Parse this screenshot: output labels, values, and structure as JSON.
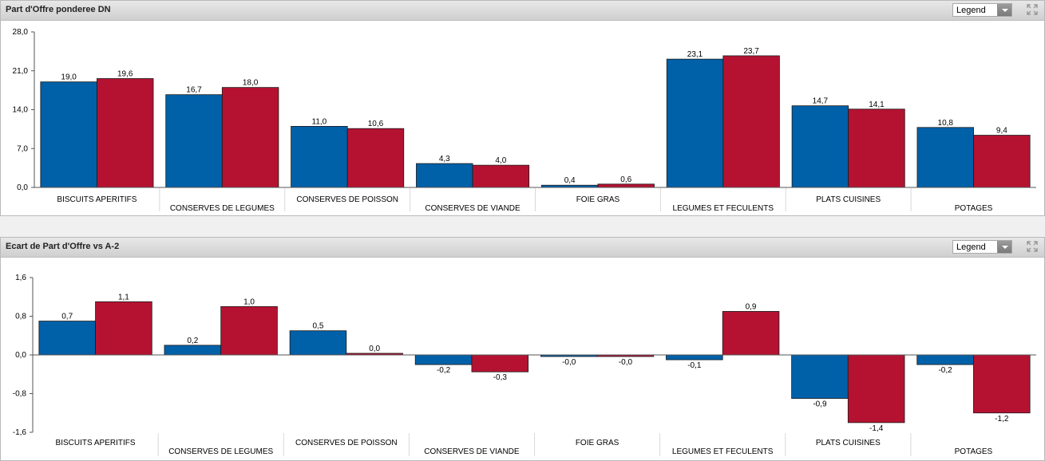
{
  "panels": [
    {
      "title": "Part d'Offre ponderee DN",
      "legend_label": "Legend"
    },
    {
      "title": "Ecart de Part d'Offre vs A-2",
      "legend_label": "Legend"
    }
  ],
  "colors": {
    "series_a": "#0060a8",
    "series_b": "#b51232",
    "axis": "#555555",
    "separator": "#d8d8d8"
  },
  "icons": {
    "expand": "expand-arrows-icon",
    "dropdown": "chevron-down-icon"
  },
  "chart_data": [
    {
      "type": "bar",
      "title": "Part d'Offre ponderee DN",
      "categories": [
        "BISCUITS APERITIFS",
        "CONSERVES DE LEGUMES",
        "CONSERVES DE POISSON",
        "CONSERVES DE VIANDE",
        "FOIE GRAS",
        "LEGUMES ET FECULENTS",
        "PLATS CUISINES",
        "POTAGES"
      ],
      "series": [
        {
          "values": [
            19.0,
            16.7,
            11.0,
            4.3,
            0.4,
            23.1,
            14.7,
            10.8
          ],
          "labels": [
            "19,0",
            "16,7",
            "11,0",
            "4,3",
            "0,4",
            "23,1",
            "14,7",
            "10,8"
          ]
        },
        {
          "values": [
            19.6,
            18.0,
            10.6,
            4.0,
            0.6,
            23.7,
            14.1,
            9.4
          ],
          "labels": [
            "19,6",
            "18,0",
            "10,6",
            "4,0",
            "0,6",
            "23,7",
            "14,1",
            "9,4"
          ]
        }
      ],
      "ylim": [
        0,
        28
      ],
      "yticks": [
        0,
        7,
        14,
        21,
        28
      ],
      "ytick_labels": [
        "0,0",
        "7,0",
        "14,0",
        "21,0",
        "28,0"
      ],
      "legend": "none",
      "grid": false
    },
    {
      "type": "bar",
      "title": "Ecart de Part d'Offre vs A-2",
      "categories": [
        "BISCUITS APERITIFS",
        "CONSERVES DE LEGUMES",
        "CONSERVES DE POISSON",
        "CONSERVES DE VIANDE",
        "FOIE GRAS",
        "LEGUMES ET FECULENTS",
        "PLATS CUISINES",
        "POTAGES"
      ],
      "series": [
        {
          "values": [
            0.7,
            0.2,
            0.5,
            -0.2,
            -0.02,
            -0.1,
            -0.9,
            -0.2
          ],
          "labels": [
            "0,7",
            "0,2",
            "0,5",
            "-0,2",
            "-0,0",
            "-0,1",
            "-0,9",
            "-0,2"
          ]
        },
        {
          "values": [
            1.1,
            1.0,
            0.03,
            -0.35,
            -0.01,
            0.9,
            -1.4,
            -1.2
          ],
          "labels": [
            "1,1",
            "1,0",
            "0,0",
            "-0,3",
            "-0,0",
            "0,9",
            "-1,4",
            "-1,2"
          ]
        }
      ],
      "ylim": [
        -1.6,
        1.6
      ],
      "yticks": [
        -1.6,
        -0.8,
        0,
        0.8,
        1.6
      ],
      "ytick_labels": [
        "-1,6",
        "-0,8",
        "0,0",
        "0,8",
        "1,6"
      ],
      "legend": "none",
      "grid": false
    }
  ]
}
